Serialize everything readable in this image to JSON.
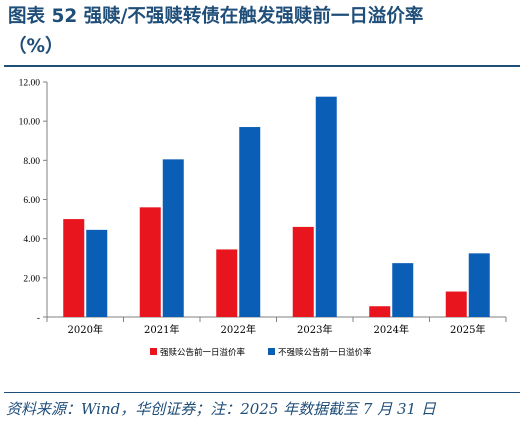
{
  "figure": {
    "title_line1": "图表 52   强赎/不强赎转债在触发强赎前一日溢价率",
    "title_line2": "（%）",
    "source": "资料来源：Wind，华创证券；注：2025 年数据截至 7 月 31 日"
  },
  "colors": {
    "series1": "#e8151f",
    "series2": "#0a5eb5",
    "title": "#1f4e79",
    "axis": "#808080"
  },
  "chart_data": {
    "type": "bar",
    "categories": [
      "2020年",
      "2021年",
      "2022年",
      "2023年",
      "2024年",
      "2025年"
    ],
    "series": [
      {
        "name": "强赎公告前一日溢价率",
        "values": [
          5.0,
          5.6,
          3.45,
          4.6,
          0.55,
          1.3
        ]
      },
      {
        "name": "不强赎公告前一日溢价率",
        "values": [
          4.45,
          8.05,
          9.7,
          11.25,
          2.75,
          3.25
        ]
      }
    ],
    "y_ticks": [
      "-",
      "2.00",
      "4.00",
      "6.00",
      "8.00",
      "10.00",
      "12.00"
    ],
    "ylim": [
      0,
      12
    ],
    "grid": false,
    "legend_position": "bottom"
  }
}
